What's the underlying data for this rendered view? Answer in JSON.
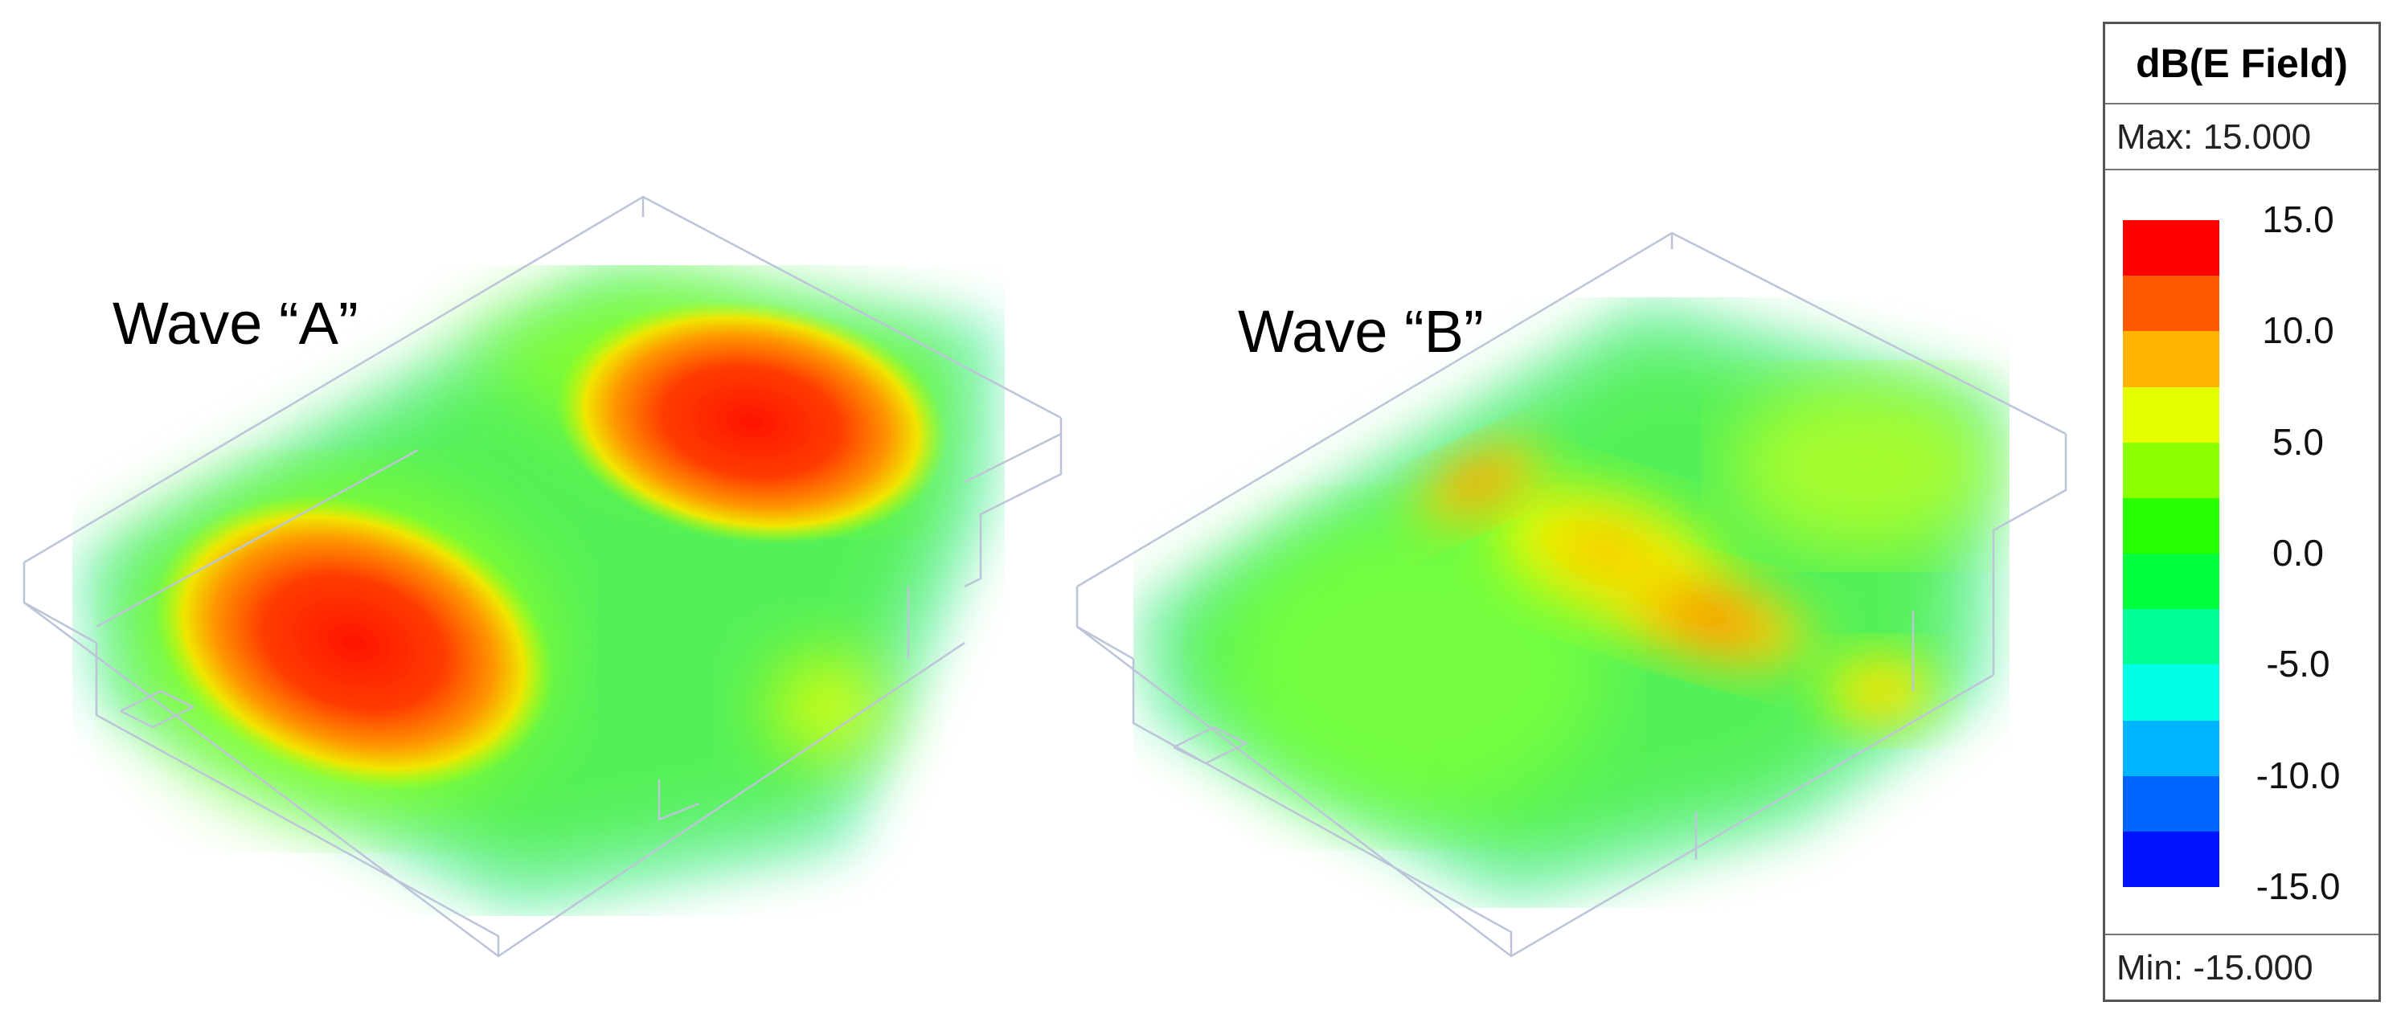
{
  "labels": {
    "wave_a": "Wave “A”",
    "wave_b": "Wave “B”"
  },
  "legend": {
    "title": "dB(E Field)",
    "max": "Max: 15.000",
    "min": "Min: -15.000",
    "colors": [
      "#ff0000",
      "#ff5a00",
      "#ffb400",
      "#e6ff00",
      "#8cff00",
      "#28ff00",
      "#00ff3c",
      "#00ff96",
      "#00ffe6",
      "#00b4ff",
      "#0064ff",
      "#0014ff"
    ],
    "ticks": [
      "15.0",
      "10.0",
      "5.0",
      "0.0",
      "-5.0",
      "-10.0",
      "-15.0"
    ]
  }
}
